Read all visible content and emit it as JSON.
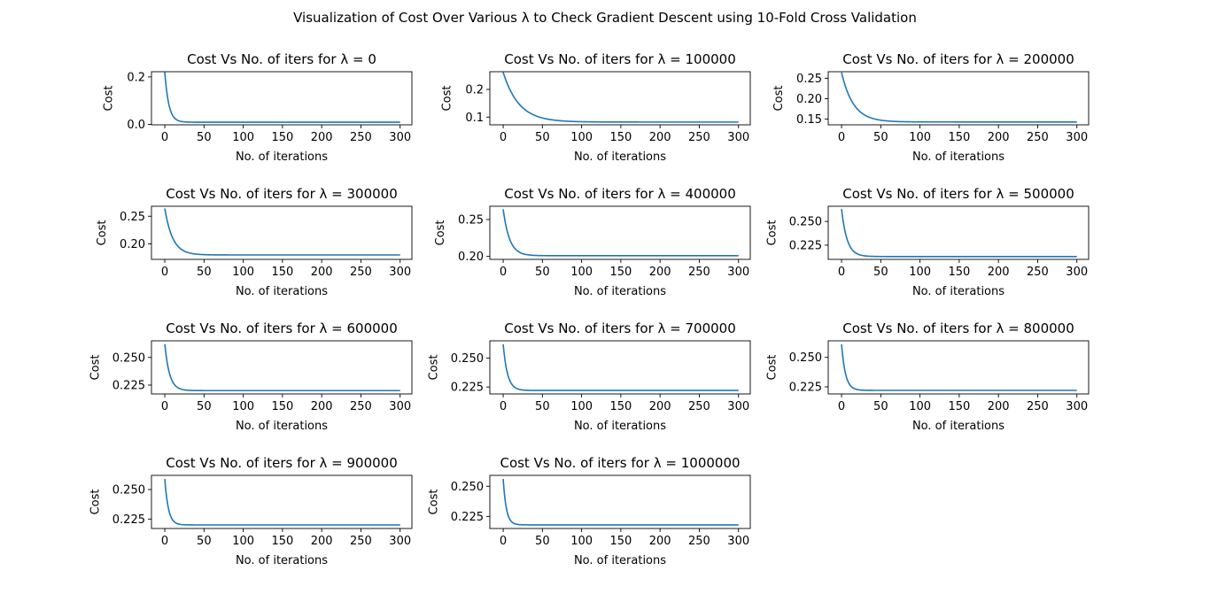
{
  "figure": {
    "suptitle": "Visualization of Cost Over Various λ to Check Gradient Descent using 10-Fold Cross Validation",
    "line_color": "#1f77b4"
  },
  "chart_data": [
    {
      "type": "line",
      "title": "Cost Vs No. of iters for λ = 0",
      "xlabel": "No. of iterations",
      "ylabel": "Cost",
      "xlim": [
        -17,
        315
      ],
      "ylim": [
        -0.002,
        0.222
      ],
      "xticks": [
        0,
        50,
        100,
        150,
        200,
        250,
        300
      ],
      "xtick_labels": [
        "0",
        "50",
        "100",
        "150",
        "200",
        "250",
        "300"
      ],
      "yticks": [
        0.0,
        0.2
      ],
      "ytick_labels": [
        "0.0",
        "0.2"
      ],
      "series": [
        {
          "start": 0.22,
          "end": 0.009,
          "tau": 5,
          "x_max": 300
        }
      ]
    },
    {
      "type": "line",
      "title": "Cost Vs No. of iters for λ = 100000",
      "xlabel": "No. of iterations",
      "ylabel": "Cost",
      "xlim": [
        -17,
        315
      ],
      "ylim": [
        0.072,
        0.264
      ],
      "xticks": [
        0,
        50,
        100,
        150,
        200,
        250,
        300
      ],
      "xtick_labels": [
        "0",
        "50",
        "100",
        "150",
        "200",
        "250",
        "300"
      ],
      "yticks": [
        0.1,
        0.2
      ],
      "ytick_labels": [
        "0.1",
        "0.2"
      ],
      "series": [
        {
          "start": 0.262,
          "end": 0.082,
          "tau": 20,
          "x_max": 300
        }
      ]
    },
    {
      "type": "line",
      "title": "Cost Vs No. of iters for λ = 200000",
      "xlabel": "No. of iterations",
      "ylabel": "Cost",
      "xlim": [
        -17,
        315
      ],
      "ylim": [
        0.136,
        0.266
      ],
      "xticks": [
        0,
        50,
        100,
        150,
        200,
        250,
        300
      ],
      "xtick_labels": [
        "0",
        "50",
        "100",
        "150",
        "200",
        "250",
        "300"
      ],
      "yticks": [
        0.15,
        0.2,
        0.25
      ],
      "ytick_labels": [
        "0.15",
        "0.20",
        "0.25"
      ],
      "series": [
        {
          "start": 0.264,
          "end": 0.143,
          "tau": 15,
          "x_max": 300
        }
      ]
    },
    {
      "type": "line",
      "title": "Cost Vs No. of iters for λ = 300000",
      "xlabel": "No. of iterations",
      "ylabel": "Cost",
      "xlim": [
        -17,
        315
      ],
      "ylim": [
        0.172,
        0.268
      ],
      "xticks": [
        0,
        50,
        100,
        150,
        200,
        250,
        300
      ],
      "xtick_labels": [
        "0",
        "50",
        "100",
        "150",
        "200",
        "250",
        "300"
      ],
      "yticks": [
        0.2,
        0.25
      ],
      "ytick_labels": [
        "0.20",
        "0.25"
      ],
      "series": [
        {
          "start": 0.264,
          "end": 0.18,
          "tau": 10,
          "x_max": 300
        }
      ]
    },
    {
      "type": "line",
      "title": "Cost Vs No. of iters for λ = 400000",
      "xlabel": "No. of iterations",
      "ylabel": "Cost",
      "xlim": [
        -17,
        315
      ],
      "ylim": [
        0.196,
        0.268
      ],
      "xticks": [
        0,
        50,
        100,
        150,
        200,
        250,
        300
      ],
      "xtick_labels": [
        "0",
        "50",
        "100",
        "150",
        "200",
        "250",
        "300"
      ],
      "yticks": [
        0.2,
        0.25
      ],
      "ytick_labels": [
        "0.20",
        "0.25"
      ],
      "series": [
        {
          "start": 0.264,
          "end": 0.201,
          "tau": 8,
          "x_max": 300
        }
      ]
    },
    {
      "type": "line",
      "title": "Cost Vs No. of iters for λ = 500000",
      "xlabel": "No. of iterations",
      "ylabel": "Cost",
      "xlim": [
        -17,
        315
      ],
      "ylim": [
        0.21,
        0.266
      ],
      "xticks": [
        0,
        50,
        100,
        150,
        200,
        250,
        300
      ],
      "xtick_labels": [
        "0",
        "50",
        "100",
        "150",
        "200",
        "250",
        "300"
      ],
      "yticks": [
        0.225,
        0.25
      ],
      "ytick_labels": [
        "0.225",
        "0.250"
      ],
      "series": [
        {
          "start": 0.263,
          "end": 0.213,
          "tau": 7,
          "x_max": 300
        }
      ]
    },
    {
      "type": "line",
      "title": "Cost Vs No. of iters for λ = 600000",
      "xlabel": "No. of iterations",
      "ylabel": "Cost",
      "xlim": [
        -17,
        315
      ],
      "ylim": [
        0.217,
        0.265
      ],
      "xticks": [
        0,
        50,
        100,
        150,
        200,
        250,
        300
      ],
      "xtick_labels": [
        "0",
        "50",
        "100",
        "150",
        "200",
        "250",
        "300"
      ],
      "yticks": [
        0.225,
        0.25
      ],
      "ytick_labels": [
        "0.225",
        "0.250"
      ],
      "series": [
        {
          "start": 0.262,
          "end": 0.22,
          "tau": 6,
          "x_max": 300
        }
      ]
    },
    {
      "type": "line",
      "title": "Cost Vs No. of iters for λ = 700000",
      "xlabel": "No. of iterations",
      "ylabel": "Cost",
      "xlim": [
        -17,
        315
      ],
      "ylim": [
        0.219,
        0.265
      ],
      "xticks": [
        0,
        50,
        100,
        150,
        200,
        250,
        300
      ],
      "xtick_labels": [
        "0",
        "50",
        "100",
        "150",
        "200",
        "250",
        "300"
      ],
      "yticks": [
        0.225,
        0.25
      ],
      "ytick_labels": [
        "0.225",
        "0.250"
      ],
      "series": [
        {
          "start": 0.262,
          "end": 0.222,
          "tau": 5.5,
          "x_max": 300
        }
      ]
    },
    {
      "type": "line",
      "title": "Cost Vs No. of iters for λ = 800000",
      "xlabel": "No. of iterations",
      "ylabel": "Cost",
      "xlim": [
        -17,
        315
      ],
      "ylim": [
        0.219,
        0.264
      ],
      "xticks": [
        0,
        50,
        100,
        150,
        200,
        250,
        300
      ],
      "xtick_labels": [
        "0",
        "50",
        "100",
        "150",
        "200",
        "250",
        "300"
      ],
      "yticks": [
        0.225,
        0.25
      ],
      "ytick_labels": [
        "0.225",
        "0.250"
      ],
      "series": [
        {
          "start": 0.261,
          "end": 0.222,
          "tau": 5,
          "x_max": 300
        }
      ]
    },
    {
      "type": "line",
      "title": "Cost Vs No. of iters for λ = 900000",
      "xlabel": "No. of iterations",
      "ylabel": "Cost",
      "xlim": [
        -17,
        315
      ],
      "ylim": [
        0.217,
        0.262
      ],
      "xticks": [
        0,
        50,
        100,
        150,
        200,
        250,
        300
      ],
      "xtick_labels": [
        "0",
        "50",
        "100",
        "150",
        "200",
        "250",
        "300"
      ],
      "yticks": [
        0.225,
        0.25
      ],
      "ytick_labels": [
        "0.225",
        "0.250"
      ],
      "series": [
        {
          "start": 0.259,
          "end": 0.22,
          "tau": 4.5,
          "x_max": 300
        }
      ]
    },
    {
      "type": "line",
      "title": "Cost Vs No. of iters for λ = 1000000",
      "xlabel": "No. of iterations",
      "ylabel": "Cost",
      "xlim": [
        -17,
        315
      ],
      "ylim": [
        0.215,
        0.259
      ],
      "xticks": [
        0,
        50,
        100,
        150,
        200,
        250,
        300
      ],
      "xtick_labels": [
        "0",
        "50",
        "100",
        "150",
        "200",
        "250",
        "300"
      ],
      "yticks": [
        0.225,
        0.25
      ],
      "ytick_labels": [
        "0.225",
        "0.250"
      ],
      "series": [
        {
          "start": 0.256,
          "end": 0.218,
          "tau": 4,
          "x_max": 300
        }
      ]
    }
  ]
}
